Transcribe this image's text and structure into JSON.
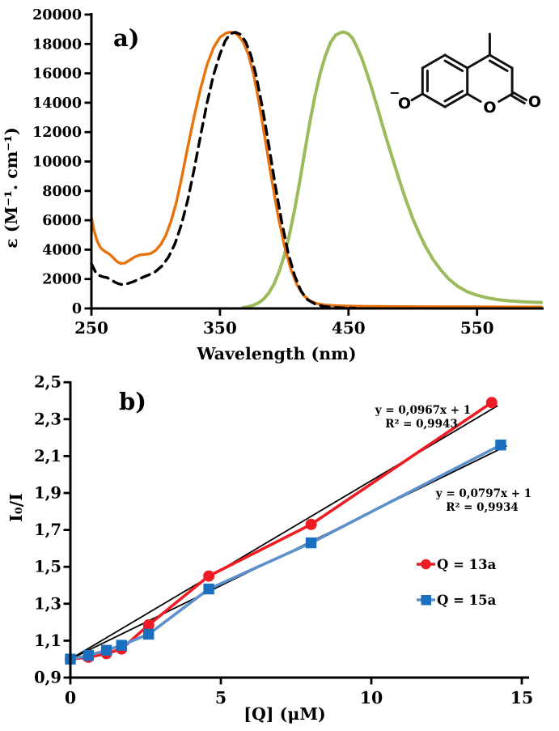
{
  "chart_data": [
    {
      "type": "line",
      "panel_label": "a)",
      "xlabel": "Wavelength (nm)",
      "ylabel": "ε (M⁻¹. cm⁻¹)",
      "xlim": [
        250,
        600
      ],
      "ylim": [
        0,
        20000
      ],
      "x_ticks": [
        250,
        350,
        450,
        550
      ],
      "y_ticks": [
        0,
        2000,
        4000,
        6000,
        8000,
        10000,
        12000,
        14000,
        16000,
        18000,
        20000
      ],
      "series": [
        {
          "name": "emission green",
          "color": "#9CBB5C",
          "width": 4,
          "dash": null,
          "x": [
            368,
            372,
            376,
            380,
            384,
            388,
            392,
            396,
            400,
            404,
            408,
            412,
            416,
            420,
            424,
            428,
            432,
            436,
            440,
            444,
            447,
            450,
            453,
            456,
            460,
            464,
            468,
            472,
            476,
            480,
            485,
            490,
            495,
            500,
            505,
            510,
            516,
            522,
            528,
            535,
            542,
            550,
            558,
            566,
            575,
            585,
            592,
            600
          ],
          "y": [
            60,
            120,
            220,
            380,
            640,
            1050,
            1650,
            2500,
            3600,
            5000,
            6700,
            8600,
            10700,
            12700,
            14500,
            16000,
            17200,
            18100,
            18600,
            18780,
            18800,
            18680,
            18400,
            17900,
            17100,
            16100,
            15000,
            13800,
            12600,
            11400,
            10000,
            8600,
            7300,
            6100,
            5100,
            4200,
            3300,
            2600,
            2000,
            1500,
            1150,
            900,
            720,
            600,
            520,
            460,
            430,
            410
          ]
        },
        {
          "name": "absorption solid orange",
          "color": "#E8720C",
          "width": 3.4,
          "dash": null,
          "x": [
            250,
            252,
            254,
            256,
            258,
            261,
            264,
            267,
            270,
            273,
            276,
            280,
            284,
            288,
            292,
            296,
            300,
            304,
            308,
            312,
            316,
            320,
            325,
            330,
            335,
            340,
            345,
            350,
            355,
            358,
            361,
            364,
            368,
            372,
            376,
            380,
            385,
            390,
            395,
            400,
            405,
            410,
            415,
            420,
            426,
            432,
            440,
            450,
            465,
            480,
            500,
            520,
            540,
            560,
            580,
            600
          ],
          "y": [
            6200,
            5300,
            4700,
            4300,
            4050,
            3850,
            3700,
            3450,
            3180,
            3060,
            3090,
            3300,
            3520,
            3650,
            3680,
            3730,
            3950,
            4350,
            5000,
            5950,
            7200,
            8800,
            11000,
            13100,
            15000,
            16600,
            17750,
            18450,
            18750,
            18800,
            18780,
            18600,
            18150,
            17300,
            16000,
            14200,
            11600,
            8900,
            6400,
            4300,
            2700,
            1600,
            900,
            520,
            320,
            230,
            190,
            160,
            140,
            130,
            120,
            115,
            110,
            105,
            100,
            100
          ]
        },
        {
          "name": "absorption dashed black",
          "color": "#000000",
          "width": 3.4,
          "dash": "11 7.5",
          "x": [
            250,
            253,
            256,
            259,
            262,
            265,
            268,
            271,
            274,
            278,
            282,
            286,
            290,
            295,
            300,
            305,
            310,
            315,
            320,
            325,
            330,
            335,
            340,
            345,
            350,
            354,
            358,
            362,
            366,
            370,
            374,
            378,
            383,
            388,
            393,
            398,
            403,
            408,
            413,
            418,
            424,
            430,
            437,
            445,
            455
          ],
          "y": [
            3050,
            2500,
            2250,
            2150,
            2100,
            1980,
            1800,
            1680,
            1620,
            1680,
            1800,
            1950,
            2120,
            2300,
            2520,
            2900,
            3500,
            4400,
            5700,
            7400,
            9500,
            11800,
            14000,
            15900,
            17300,
            18200,
            18700,
            18800,
            18650,
            18150,
            17250,
            15900,
            13700,
            11100,
            8400,
            5900,
            3800,
            2250,
            1200,
            600,
            300,
            150,
            80,
            40,
            20
          ]
        }
      ],
      "molecule": {
        "o_ring": "O",
        "o_carbonyl": "O",
        "o_phenolate": "O",
        "charge": "−"
      }
    },
    {
      "type": "scatter",
      "panel_label": "b)",
      "xlabel": "[Q] (μM)",
      "ylabel": "I₀/I",
      "xlim": [
        0,
        15.3
      ],
      "ylim": [
        0.9,
        2.5
      ],
      "x_ticks": [
        0,
        5,
        10,
        15
      ],
      "x_tick_labels": [
        "0",
        "5",
        "10",
        "15"
      ],
      "y_ticks": [
        0.9,
        1.1,
        1.3,
        1.5,
        1.7,
        1.9,
        2.1,
        2.3,
        2.5
      ],
      "y_tick_labels": [
        "0,9",
        "1,1",
        "1,3",
        "1,5",
        "1,7",
        "1,9",
        "2,1",
        "2,3",
        "2,5"
      ],
      "series": [
        {
          "name": "Q = 13a",
          "marker": "circle",
          "line_color": "#EE1C25",
          "marker_color": "#EE1C25",
          "width": 3.6,
          "x": [
            0,
            0.6,
            1.2,
            1.7,
            2.6,
            4.6,
            8,
            14
          ],
          "y": [
            1.0,
            1.01,
            1.03,
            1.055,
            1.185,
            1.45,
            1.73,
            2.39
          ]
        },
        {
          "name": "Q = 15a",
          "marker": "square",
          "line_color": "#5E90CC",
          "marker_color": "#1B6FBF",
          "width": 3.6,
          "x": [
            0,
            0.6,
            1.2,
            1.7,
            2.6,
            4.6,
            8,
            14.3
          ],
          "y": [
            1.0,
            1.02,
            1.048,
            1.075,
            1.135,
            1.38,
            1.63,
            2.16
          ]
        }
      ],
      "trendlines": [
        {
          "equation": "y = 0,0967x + 1",
          "r2": "R² = 0,9943",
          "slope": 0.0967,
          "intercept": 1,
          "x_start": 0,
          "x_end": 14.2
        },
        {
          "equation": "y = 0,0797x + 1",
          "r2": "R² = 0,9934",
          "slope": 0.0797,
          "intercept": 1,
          "x_start": 0,
          "x_end": 14.5
        }
      ]
    }
  ]
}
